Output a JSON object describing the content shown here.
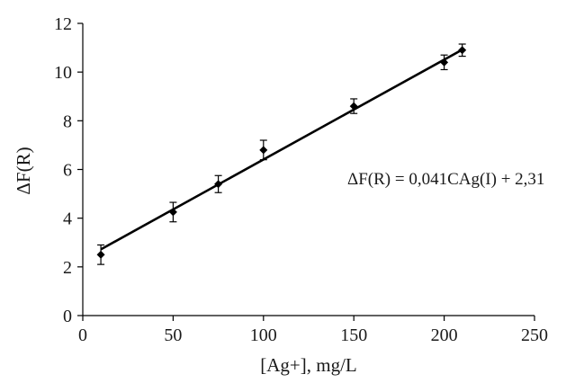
{
  "chart_data": {
    "type": "scatter",
    "title": "",
    "xlabel": "[Ag+], mg/L",
    "ylabel": "ΔF(R)",
    "xlim": [
      0,
      250
    ],
    "ylim": [
      0,
      12
    ],
    "x_ticks": [
      0,
      50,
      100,
      150,
      200,
      250
    ],
    "y_ticks": [
      0,
      2,
      4,
      6,
      8,
      10,
      12
    ],
    "grid": false,
    "series": [
      {
        "x": [
          10,
          50,
          75,
          100,
          150,
          200,
          210
        ],
        "y": [
          2.5,
          4.25,
          5.4,
          6.8,
          8.6,
          10.4,
          10.9
        ],
        "error": [
          0.4,
          0.4,
          0.35,
          0.4,
          0.3,
          0.3,
          0.25
        ],
        "marker": "diamond",
        "color": "#000000"
      }
    ],
    "trendline": {
      "slope": 0.041,
      "intercept": 2.31,
      "x_range": [
        10,
        210
      ],
      "color": "#000000"
    },
    "annotation": "ΔF(R) = 0,041CAg(I) + 2,31"
  }
}
